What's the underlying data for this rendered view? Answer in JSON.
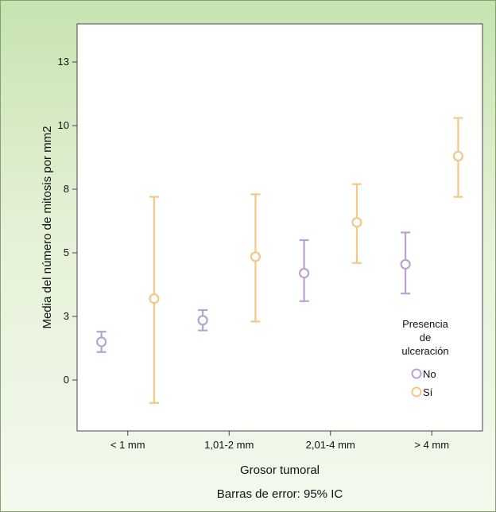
{
  "chart_data": {
    "type": "scatter",
    "title": "",
    "xlabel": "Grosor tumoral",
    "ylabel": "Media del número de mitosis por mm2",
    "footnote": "Barras de error: 95% IC",
    "categories": [
      "< 1 mm",
      "1,01-2 mm",
      "2,01-4 mm",
      "> 4 mm"
    ],
    "y_ticks": [
      {
        "value": 0,
        "label": "0"
      },
      {
        "value": 2.5,
        "label": "3"
      },
      {
        "value": 5,
        "label": "5"
      },
      {
        "value": 7.5,
        "label": "8"
      },
      {
        "value": 10,
        "label": "10"
      },
      {
        "value": 12.5,
        "label": "13"
      }
    ],
    "ylim": [
      -2,
      14
    ],
    "grid": false,
    "legend": {
      "title_lines": [
        "Presencia",
        "de",
        "ulceración"
      ],
      "placement": "right"
    },
    "series": [
      {
        "name": "No",
        "color": "#b8a3d4",
        "points": [
          {
            "category": "< 1 mm",
            "mean": 1.5,
            "low": 1.1,
            "high": 1.9
          },
          {
            "category": "1,01-2 mm",
            "mean": 2.35,
            "low": 1.95,
            "high": 2.75
          },
          {
            "category": "2,01-4 mm",
            "mean": 4.2,
            "low": 3.1,
            "high": 5.5
          },
          {
            "category": "> 4 mm",
            "mean": 4.55,
            "low": 3.4,
            "high": 5.8
          }
        ]
      },
      {
        "name": "Sí",
        "color": "#f5c685",
        "points": [
          {
            "category": "< 1 mm",
            "mean": 3.2,
            "low": -0.9,
            "high": 7.2
          },
          {
            "category": "1,01-2 mm",
            "mean": 4.85,
            "low": 2.3,
            "high": 7.3
          },
          {
            "category": "2,01-4 mm",
            "mean": 6.2,
            "low": 4.6,
            "high": 7.7
          },
          {
            "category": "> 4 mm",
            "mean": 8.8,
            "low": 7.2,
            "high": 10.3
          }
        ]
      }
    ]
  }
}
